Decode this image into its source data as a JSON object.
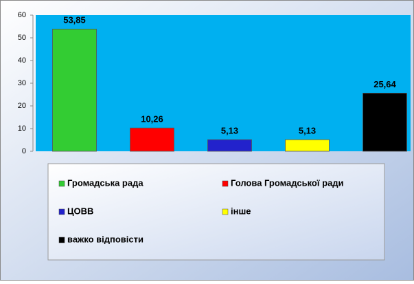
{
  "chart_data": {
    "type": "bar",
    "categories": [
      "Громадська  рада",
      "Голова Громадської ради",
      "ЦОВВ",
      "інше",
      "важко відповісти"
    ],
    "values": [
      53.85,
      10.26,
      5.13,
      5.13,
      25.64
    ],
    "value_labels": [
      "53,85",
      "10,26",
      "5,13",
      "5,13",
      "25,64"
    ],
    "colors": [
      "#33cc33",
      "#ff0000",
      "#2222cc",
      "#ffff00",
      "#000000"
    ],
    "ylim": [
      0,
      60
    ],
    "yticks": [
      0,
      10,
      20,
      30,
      40,
      50,
      60
    ],
    "plot_background": "#00b0f0",
    "legend": "bottom"
  }
}
